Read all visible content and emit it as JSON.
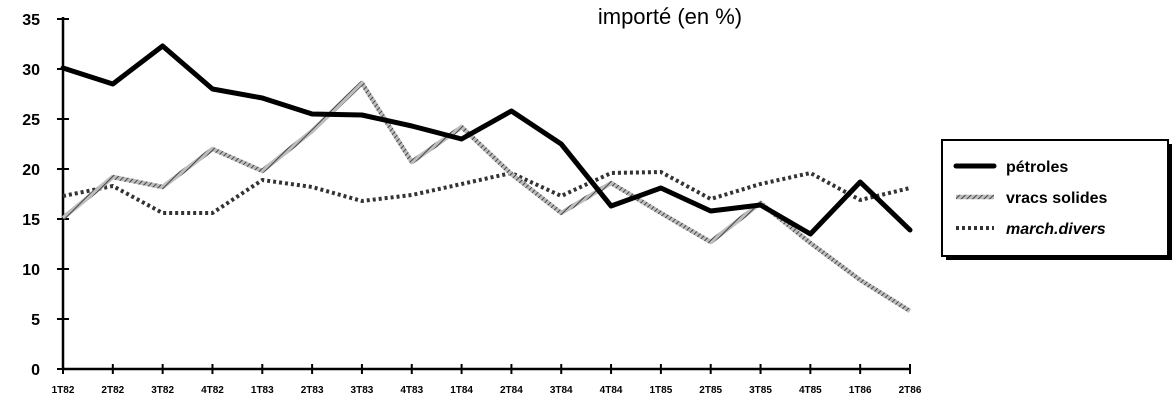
{
  "chart_data": {
    "type": "line",
    "title": "importé (en %)",
    "xlabel": "",
    "ylabel": "",
    "ylim": [
      0,
      35
    ],
    "yticks": [
      "0",
      "5",
      "10",
      "15",
      "20",
      "25",
      "30",
      "35"
    ],
    "categories": [
      "1T82",
      "2T82",
      "3T82",
      "4T82",
      "1T83",
      "2T83",
      "3T83",
      "4T83",
      "1T84",
      "2T84",
      "3T84",
      "4T84",
      "1T85",
      "2T85",
      "3T85",
      "4T85",
      "1T86",
      "2T86"
    ],
    "series": [
      {
        "name": "pétroles",
        "values": [
          30.1,
          28.5,
          32.3,
          28.0,
          27.1,
          25.5,
          25.4,
          24.3,
          23.0,
          25.8,
          22.5,
          16.3,
          18.1,
          15.8,
          16.4,
          13.5,
          18.7,
          13.9
        ],
        "color": "#000000",
        "style": "thick-solid"
      },
      {
        "name": "vracs solides",
        "values": [
          15.1,
          19.2,
          18.2,
          22.0,
          19.8,
          23.8,
          28.6,
          20.7,
          24.2,
          19.5,
          15.6,
          18.6,
          15.6,
          12.7,
          16.6,
          12.6,
          8.9,
          5.8
        ],
        "color": "#777777",
        "style": "hatched"
      },
      {
        "name": "march.divers",
        "values": [
          17.3,
          18.3,
          15.6,
          15.6,
          18.9,
          18.2,
          16.8,
          17.4,
          18.5,
          19.6,
          17.3,
          19.6,
          19.7,
          17.0,
          18.5,
          19.6,
          16.9,
          18.1
        ],
        "color": "#333333",
        "style": "dotted"
      }
    ],
    "legend": "right",
    "grid": false
  }
}
